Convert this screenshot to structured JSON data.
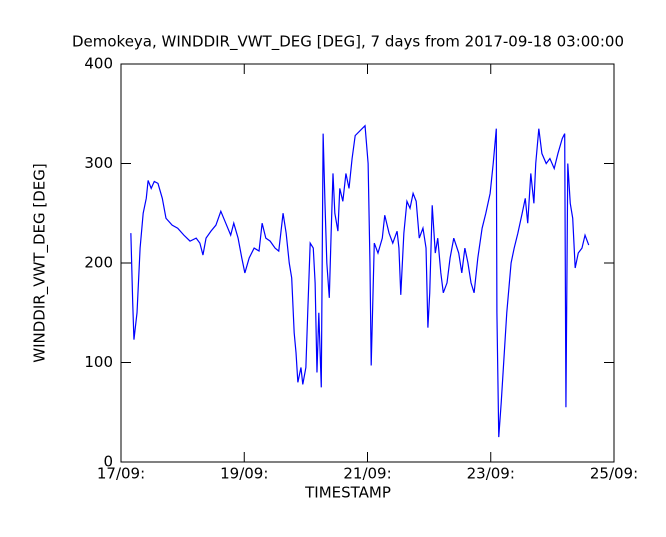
{
  "chart_data": {
    "type": "line",
    "title": "Demokeya, WINDDIR_VWT_DEG [DEG], 7 days from  2017-09-18 03:00:00",
    "xlabel": "TIMESTAMP",
    "ylabel": "WINDDIR_VWT_DEG [DEG]",
    "xlim": [
      17,
      25
    ],
    "ylim": [
      0,
      400
    ],
    "xticks": [
      {
        "value": 17,
        "label": "17/09:"
      },
      {
        "value": 19,
        "label": "19/09:"
      },
      {
        "value": 21,
        "label": "21/09:"
      },
      {
        "value": 23,
        "label": "23/09:"
      },
      {
        "value": 25,
        "label": "25/09:"
      }
    ],
    "yticks": [
      0,
      100,
      200,
      300,
      400
    ],
    "x": [
      17.16,
      17.19,
      17.21,
      17.26,
      17.31,
      17.36,
      17.41,
      17.44,
      17.49,
      17.54,
      17.6,
      17.67,
      17.73,
      17.83,
      17.92,
      18.02,
      18.12,
      18.22,
      18.28,
      18.33,
      18.38,
      18.46,
      18.54,
      18.62,
      18.7,
      18.78,
      18.83,
      18.9,
      18.96,
      19.01,
      19.08,
      19.16,
      19.24,
      19.29,
      19.35,
      19.42,
      19.5,
      19.56,
      19.63,
      19.68,
      19.73,
      19.77,
      19.81,
      19.84,
      19.87,
      19.92,
      19.95,
      20.0,
      20.03,
      20.07,
      20.12,
      20.15,
      20.18,
      20.21,
      20.25,
      20.28,
      20.31,
      20.34,
      20.38,
      20.41,
      20.44,
      20.47,
      20.52,
      20.55,
      20.6,
      20.65,
      20.7,
      20.75,
      20.8,
      20.96,
      21.01,
      21.04,
      21.06,
      21.11,
      21.17,
      21.24,
      21.28,
      21.35,
      21.41,
      21.48,
      21.51,
      21.54,
      21.59,
      21.64,
      21.69,
      21.74,
      21.79,
      21.84,
      21.9,
      21.95,
      21.98,
      22.01,
      22.05,
      22.1,
      22.14,
      22.19,
      22.23,
      22.29,
      22.34,
      22.4,
      22.48,
      22.53,
      22.58,
      22.63,
      22.68,
      22.73,
      22.79,
      22.86,
      22.92,
      22.99,
      23.04,
      23.09,
      23.1,
      23.13,
      23.17,
      23.22,
      23.26,
      23.33,
      23.38,
      23.44,
      23.51,
      23.56,
      23.6,
      23.65,
      23.7,
      23.73,
      23.78,
      23.83,
      23.9,
      23.96,
      24.03,
      24.09,
      24.16,
      24.2,
      24.22,
      24.25,
      24.29,
      24.33,
      24.37,
      24.42,
      24.48,
      24.53,
      24.59
    ],
    "series": [
      {
        "name": "WINDDIR_VWT_DEG",
        "color": "#0000ff",
        "values": [
          230,
          160,
          123,
          150,
          215,
          250,
          265,
          283,
          275,
          282,
          280,
          265,
          245,
          238,
          235,
          228,
          222,
          225,
          220,
          208,
          225,
          232,
          238,
          252,
          240,
          228,
          240,
          225,
          205,
          190,
          205,
          215,
          212,
          240,
          225,
          222,
          215,
          212,
          250,
          230,
          200,
          185,
          130,
          110,
          80,
          95,
          78,
          95,
          150,
          220,
          215,
          180,
          90,
          150,
          75,
          330,
          260,
          200,
          165,
          230,
          290,
          250,
          232,
          275,
          262,
          290,
          275,
          305,
          328,
          338,
          300,
          200,
          97,
          220,
          210,
          225,
          248,
          230,
          220,
          232,
          215,
          168,
          230,
          262,
          255,
          270,
          262,
          225,
          235,
          215,
          135,
          170,
          258,
          210,
          225,
          190,
          170,
          180,
          205,
          225,
          210,
          190,
          215,
          200,
          180,
          170,
          205,
          235,
          250,
          270,
          300,
          335,
          150,
          25,
          60,
          110,
          150,
          200,
          215,
          230,
          250,
          265,
          240,
          290,
          260,
          300,
          335,
          310,
          300,
          305,
          295,
          310,
          325,
          330,
          55,
          300,
          260,
          245,
          195,
          210,
          215,
          228,
          218
        ]
      }
    ]
  }
}
